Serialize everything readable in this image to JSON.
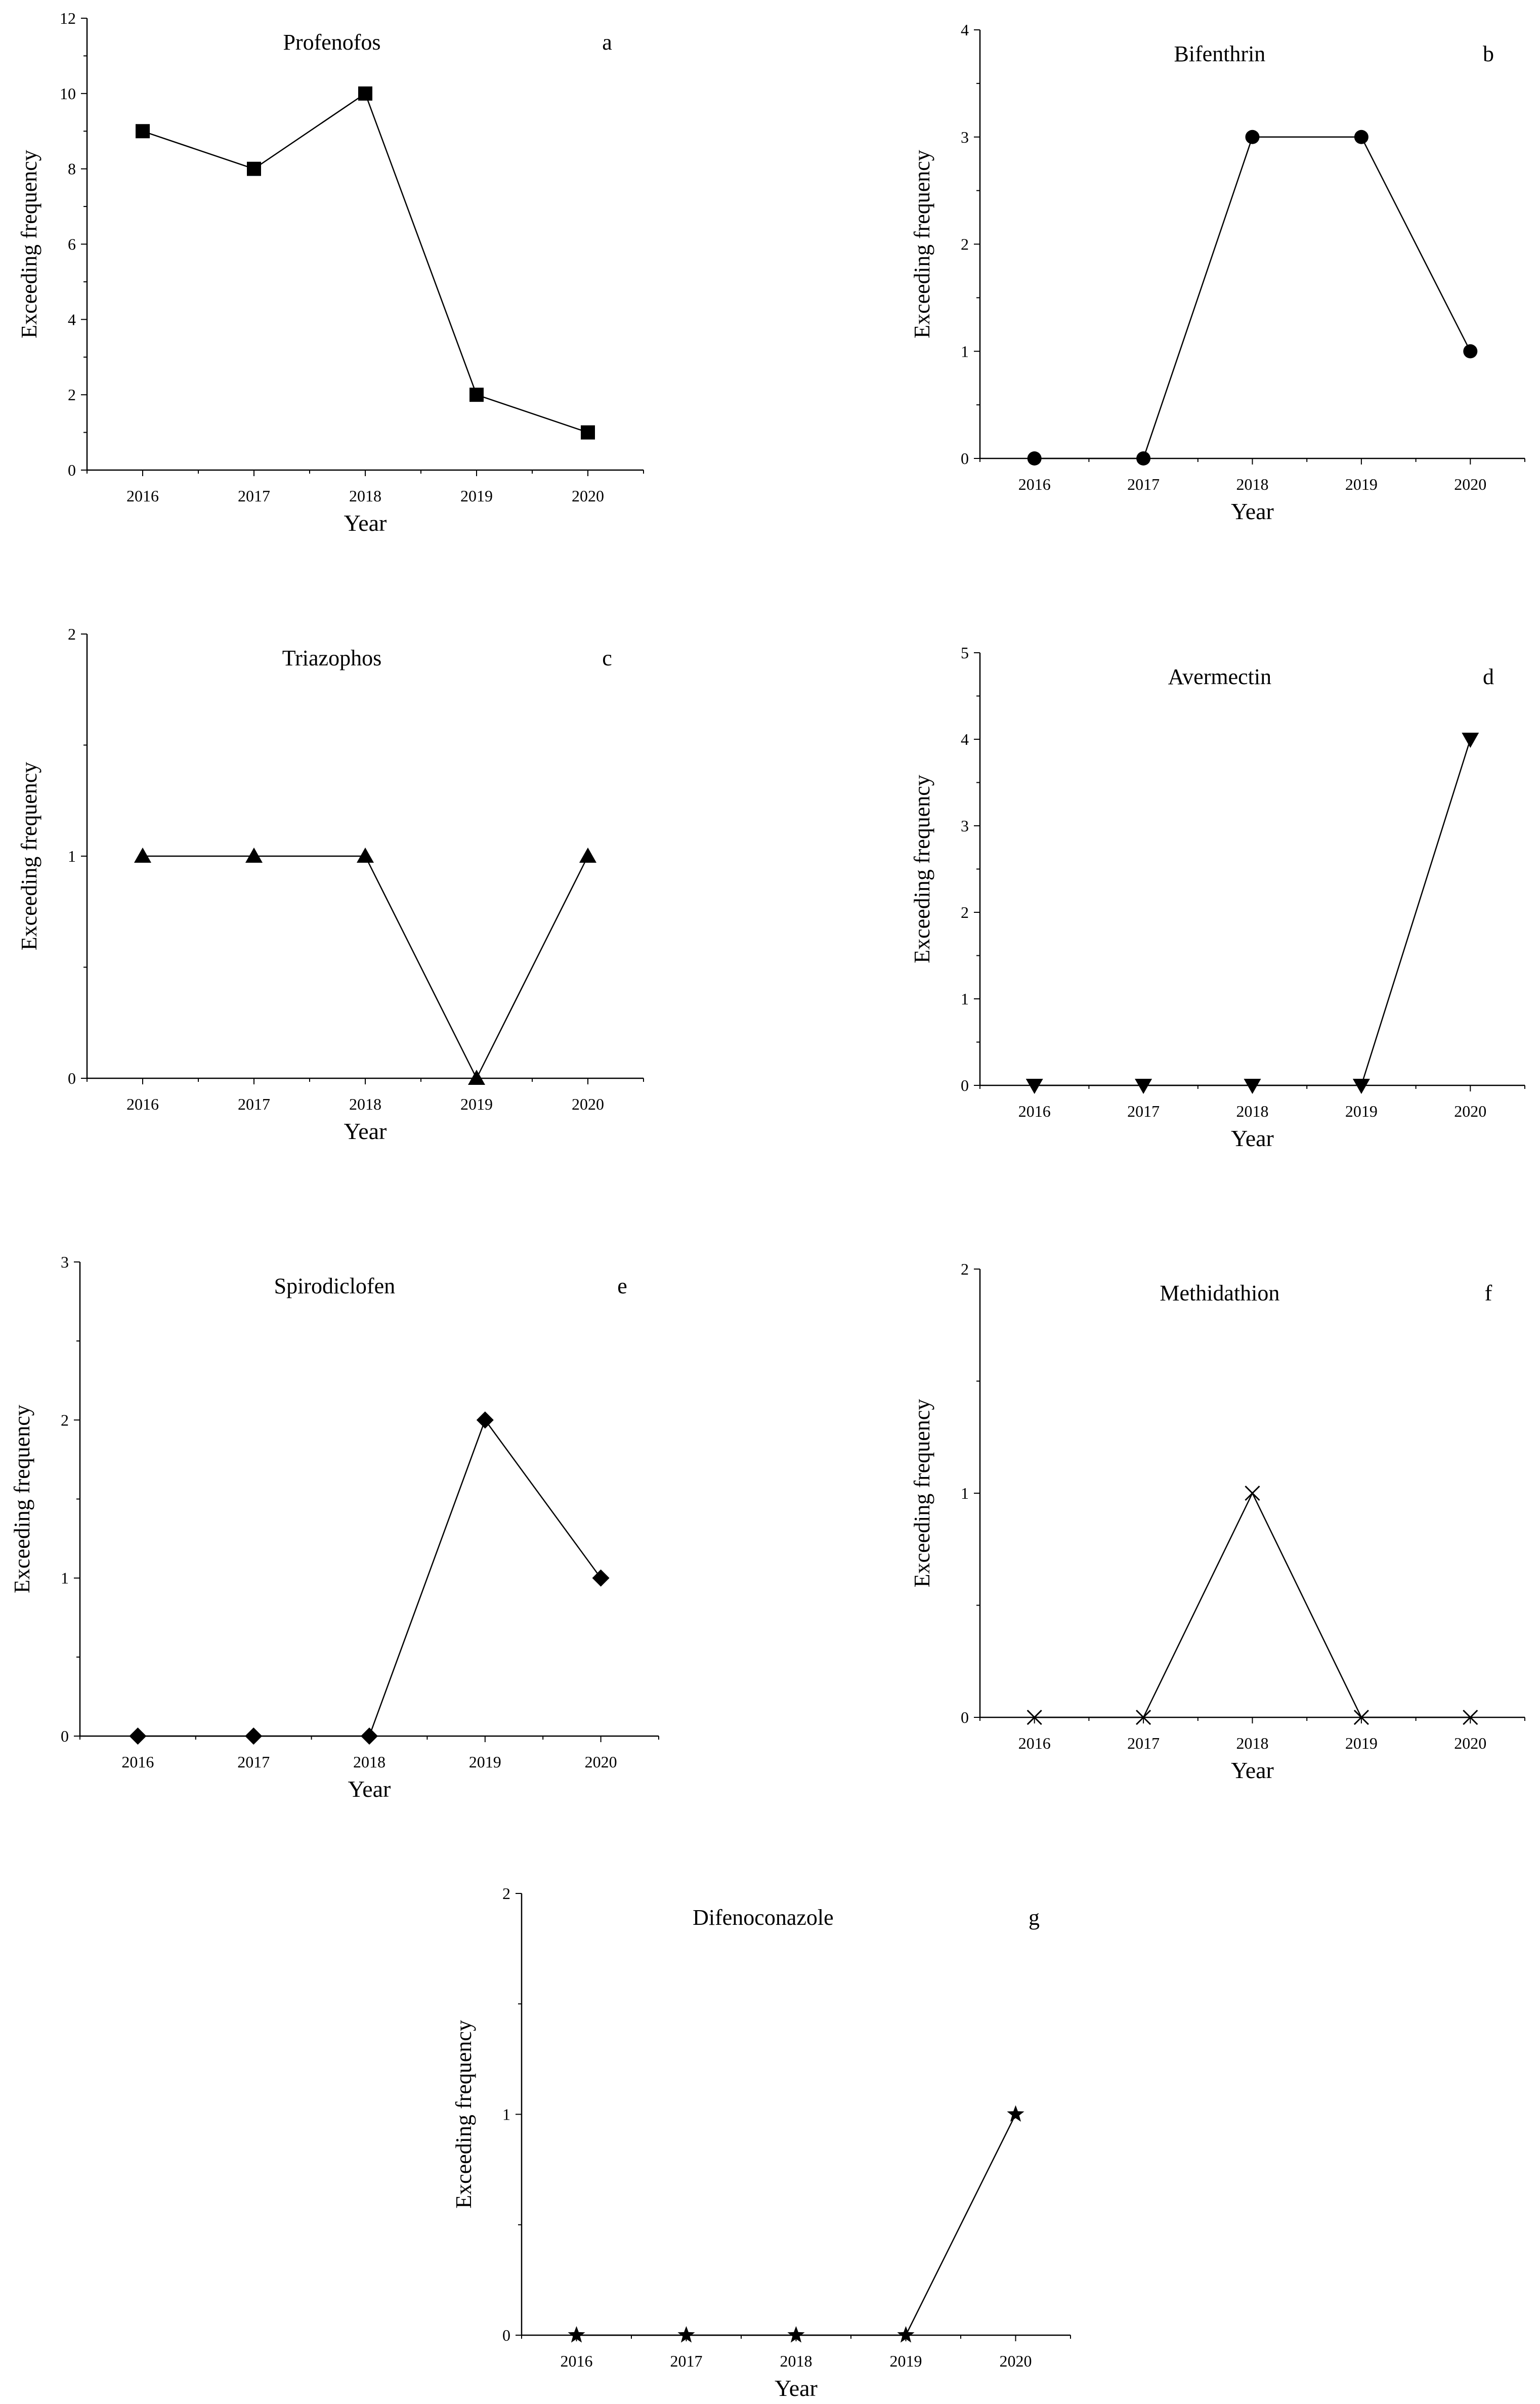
{
  "figure": {
    "style": {
      "line_color": "#000000",
      "background": "#ffffff"
    }
  },
  "chart_data": [
    {
      "type": "line",
      "panel": "a",
      "title": "Profenofos",
      "xlabel": "Year",
      "ylabel": "Exceeding frequency",
      "categories": [
        "2016",
        "2017",
        "2018",
        "2019",
        "2020"
      ],
      "values": [
        9,
        8,
        10,
        2,
        1
      ],
      "xlim": [
        2015.5,
        2020.5
      ],
      "ylim": [
        0,
        12
      ],
      "yticks": [
        0,
        2,
        4,
        6,
        8,
        10,
        12
      ],
      "yminor": 1,
      "marker": "square"
    },
    {
      "type": "line",
      "panel": "b",
      "title": "Bifenthrin",
      "xlabel": "Year",
      "ylabel": "Exceeding frequency",
      "categories": [
        "2016",
        "2017",
        "2018",
        "2019",
        "2020"
      ],
      "values": [
        0,
        0,
        3,
        3,
        1
      ],
      "xlim": [
        2015.5,
        2020.5
      ],
      "ylim": [
        0,
        4
      ],
      "yticks": [
        0,
        1,
        2,
        3,
        4
      ],
      "yminor": 0.5,
      "marker": "circle"
    },
    {
      "type": "line",
      "panel": "c",
      "title": "Triazophos",
      "xlabel": "Year",
      "ylabel": "Exceeding frequency",
      "categories": [
        "2016",
        "2017",
        "2018",
        "2019",
        "2020"
      ],
      "values": [
        1,
        1,
        1,
        0,
        1
      ],
      "xlim": [
        2015.5,
        2020.5
      ],
      "ylim": [
        0,
        2
      ],
      "yticks": [
        0,
        1,
        2
      ],
      "yminor": 0.5,
      "marker": "triangle-up"
    },
    {
      "type": "line",
      "panel": "d",
      "title": "Avermectin",
      "xlabel": "Year",
      "ylabel": "Exceeding frequency",
      "categories": [
        "2016",
        "2017",
        "2018",
        "2019",
        "2020"
      ],
      "values": [
        0,
        0,
        0,
        0,
        4
      ],
      "xlim": [
        2015.5,
        2020.5
      ],
      "ylim": [
        0,
        5
      ],
      "yticks": [
        0,
        1,
        2,
        3,
        4,
        5
      ],
      "yminor": 0.5,
      "marker": "triangle-down"
    },
    {
      "type": "line",
      "panel": "e",
      "title": "Spirodiclofen",
      "xlabel": "Year",
      "ylabel": "Exceeding frequency",
      "categories": [
        "2016",
        "2017",
        "2018",
        "2019",
        "2020"
      ],
      "values": [
        0,
        0,
        0,
        2,
        1
      ],
      "xlim": [
        2015.5,
        2020.5
      ],
      "ylim": [
        0,
        3
      ],
      "yticks": [
        0,
        1,
        2,
        3
      ],
      "yminor": 0.5,
      "marker": "diamond"
    },
    {
      "type": "line",
      "panel": "f",
      "title": "Methidathion",
      "xlabel": "Year",
      "ylabel": "Exceeding frequency",
      "categories": [
        "2016",
        "2017",
        "2018",
        "2019",
        "2020"
      ],
      "values": [
        0,
        0,
        1,
        0,
        0
      ],
      "xlim": [
        2015.5,
        2020.5
      ],
      "ylim": [
        0,
        2
      ],
      "yticks": [
        0,
        1,
        2
      ],
      "yminor": 0.5,
      "marker": "x"
    },
    {
      "type": "line",
      "panel": "g",
      "title": "Difenoconazole",
      "xlabel": "Year",
      "ylabel": "Exceeding frequency",
      "categories": [
        "2016",
        "2017",
        "2018",
        "2019",
        "2020"
      ],
      "values": [
        0,
        0,
        0,
        0,
        1
      ],
      "xlim": [
        2015.5,
        2020.5
      ],
      "ylim": [
        0,
        2
      ],
      "yticks": [
        0,
        1,
        2
      ],
      "yminor": 0.5,
      "marker": "star"
    }
  ]
}
